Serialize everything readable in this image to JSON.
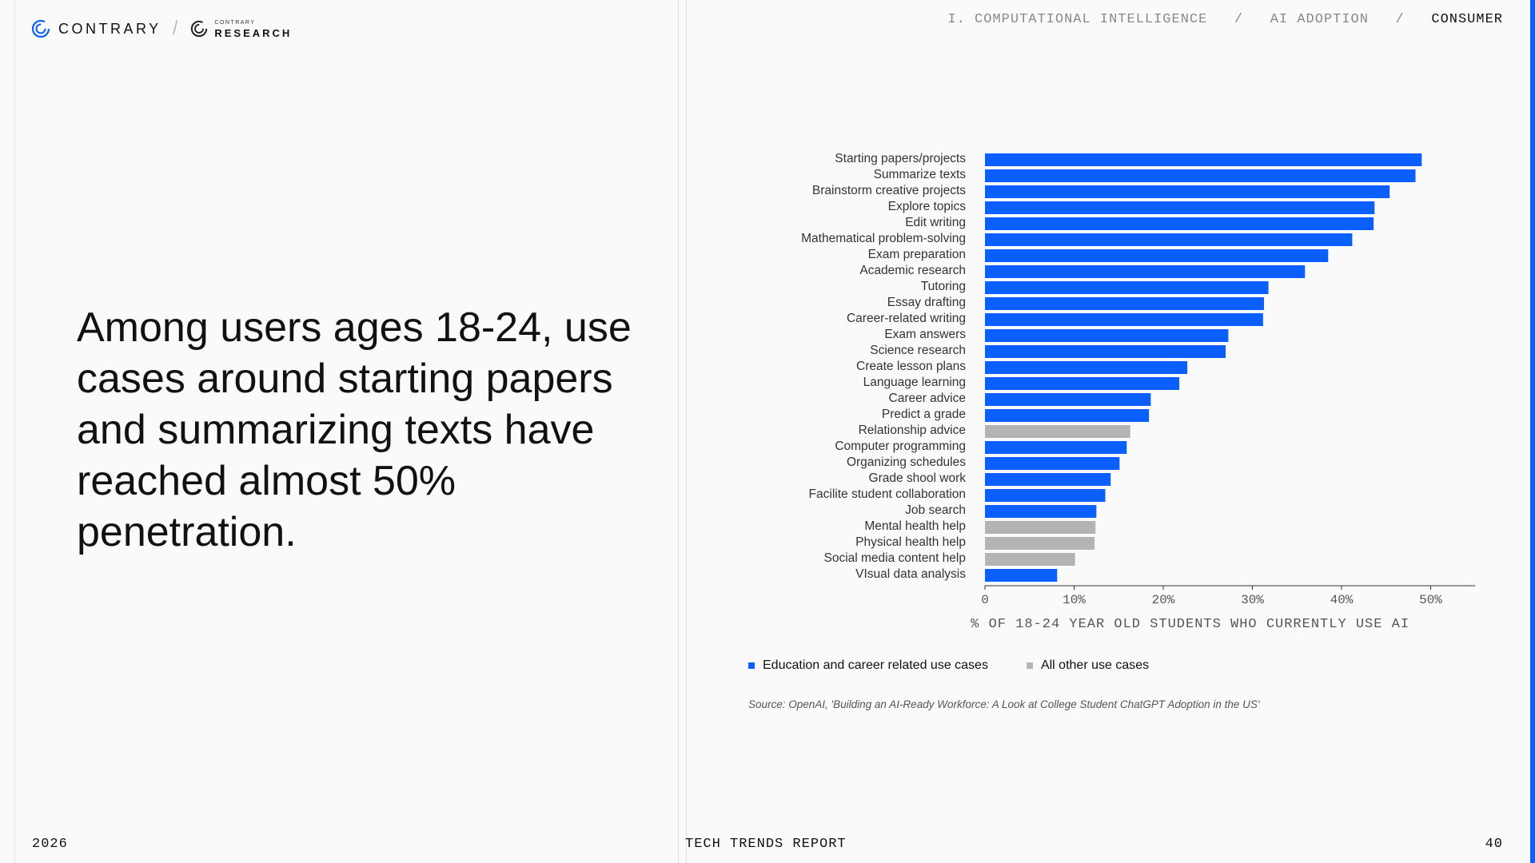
{
  "header": {
    "logo_name": "CONTRARY",
    "research_top": "CONTRARY",
    "research_main": "RESEARCH",
    "breadcrumb": {
      "items": [
        "I. COMPUTATIONAL INTELLIGENCE",
        "AI ADOPTION",
        "CONSUMER"
      ],
      "separator": "/"
    }
  },
  "headline": "Among users ages 18-24, use cases around starting papers and summarizing texts have reached almost 50% penetration.",
  "colors": {
    "primary": "#0b5fff",
    "other": "#b4b4b4"
  },
  "chart_data": {
    "type": "bar",
    "orientation": "horizontal",
    "xlabel": "% OF 18-24 YEAR OLD STUDENTS WHO CURRENTLY USE AI",
    "xlim": [
      0,
      55
    ],
    "xticks": [
      0,
      10,
      20,
      30,
      40,
      50
    ],
    "xtick_labels": [
      "0",
      "10%",
      "20%",
      "30%",
      "40%",
      "50%"
    ],
    "categories": [
      "Starting papers/projects",
      "Summarize texts",
      "Brainstorm creative projects",
      "Explore topics",
      "Edit writing",
      "Mathematical problem-solving",
      "Exam preparation",
      "Academic research",
      "Tutoring",
      "Essay drafting",
      "Career-related writing",
      "Exam answers",
      "Science research",
      "Create lesson plans",
      "Language learning",
      "Career advice",
      "Predict a grade",
      "Relationship advice",
      "Computer programming",
      "Organizing schedules",
      "Grade shool work",
      "Facilite student collaboration",
      "Job search",
      "Mental health help",
      "Physical health help",
      "Social media content help",
      "VIsual data analysis"
    ],
    "values": [
      49,
      48.3,
      45.4,
      43.7,
      43.6,
      41.2,
      38.5,
      35.9,
      31.8,
      31.3,
      31.2,
      27.3,
      27,
      22.7,
      21.8,
      18.6,
      18.4,
      16.3,
      15.9,
      15.1,
      14.1,
      13.5,
      12.5,
      12.4,
      12.3,
      10.1,
      8.1
    ],
    "groups": [
      "Education and career related use cases",
      "Education and career related use cases",
      "Education and career related use cases",
      "Education and career related use cases",
      "Education and career related use cases",
      "Education and career related use cases",
      "Education and career related use cases",
      "Education and career related use cases",
      "Education and career related use cases",
      "Education and career related use cases",
      "Education and career related use cases",
      "Education and career related use cases",
      "Education and career related use cases",
      "Education and career related use cases",
      "Education and career related use cases",
      "Education and career related use cases",
      "Education and career related use cases",
      "All other use cases",
      "Education and career related use cases",
      "Education and career related use cases",
      "Education and career related use cases",
      "Education and career related use cases",
      "Education and career related use cases",
      "All other use cases",
      "All other use cases",
      "All other use cases",
      "Education and career related use cases"
    ],
    "legend": [
      {
        "name": "Education and career related use cases",
        "color": "#0b5fff"
      },
      {
        "name": "All other use cases",
        "color": "#b4b4b4"
      }
    ],
    "legend_position": "bottom-left",
    "grid": false
  },
  "source": "Source: OpenAI, 'Building an AI-Ready Workforce: A Look at College Student ChatGPT Adoption in the US'",
  "footer": {
    "year": "2026",
    "report": "TECH TRENDS REPORT",
    "page": "40"
  }
}
